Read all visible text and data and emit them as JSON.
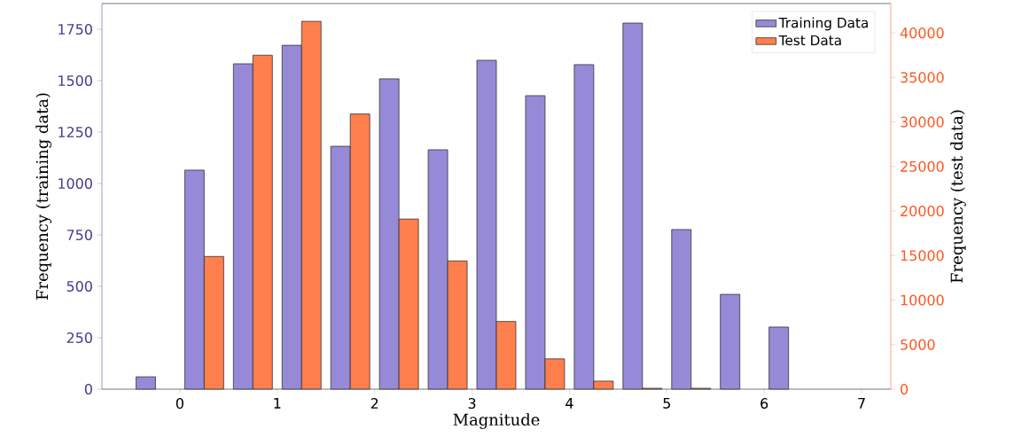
{
  "chart_data": {
    "type": "histogram",
    "xlabel": "Magnitude",
    "ylabel": "Frequency (training data)",
    "y2label": "Frequency (test data)",
    "bins": [
      -0.5,
      0,
      0.5,
      1,
      1.5,
      2,
      2.5,
      3,
      3.5,
      4,
      4.5,
      5,
      5.5,
      6,
      6.5
    ],
    "series": [
      {
        "name": "Training Data",
        "color": "#968ad8",
        "values": [
          60,
          1065,
          1582,
          1672,
          1181,
          1509,
          1164,
          1599,
          1427,
          1578,
          1780,
          776,
          461,
          302
        ]
      },
      {
        "name": "Test Data",
        "color": "#ff7f4d",
        "axis": "y2",
        "values": [
          null,
          14900,
          37500,
          41300,
          30900,
          19100,
          14400,
          7600,
          3400,
          900,
          100,
          100,
          null,
          null
        ]
      }
    ],
    "xlim": [
      -0.8,
      7.3
    ],
    "xticks": [
      0,
      1,
      2,
      3,
      4,
      5,
      6,
      7
    ],
    "ylim": [
      0,
      1875
    ],
    "yticks": [
      0,
      250,
      500,
      750,
      1000,
      1250,
      1500,
      1750
    ],
    "y2lim": [
      0,
      43300
    ],
    "y2ticks": [
      0,
      5000,
      10000,
      15000,
      20000,
      25000,
      30000,
      35000,
      40000
    ],
    "legend": "top right"
  }
}
